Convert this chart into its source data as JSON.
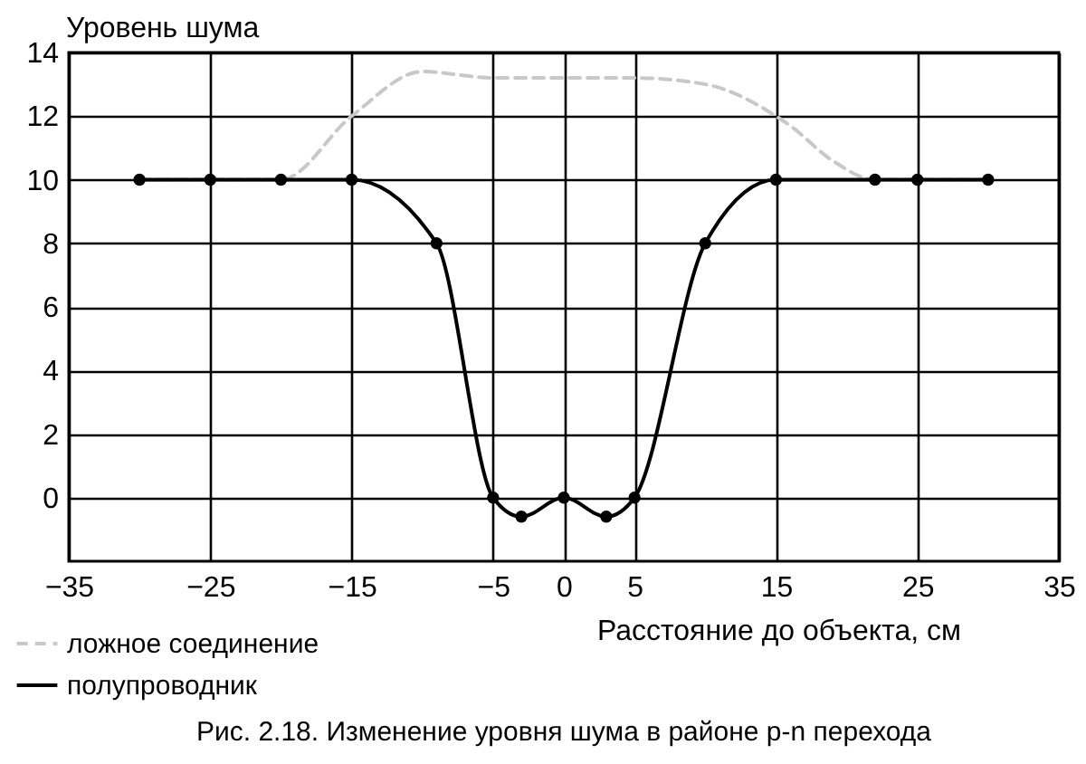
{
  "chart_data": {
    "type": "line",
    "ylabel": "Уровень шума",
    "xlabel": "Расстояние до объекта, см",
    "annotations": [
      "Рис. 2.18. Изменение уровня шума в районе p-n перехода"
    ],
    "xlim": [
      -35,
      35
    ],
    "xticks": [
      -35,
      -25,
      -15,
      -5,
      0,
      5,
      15,
      25,
      35
    ],
    "ylim": [
      -2,
      14
    ],
    "yticks": [
      0,
      2,
      4,
      6,
      8,
      10,
      12,
      14
    ],
    "grid": true,
    "legend": "bottom left",
    "marker": "circle",
    "series": [
      {
        "name": "ложное соединение",
        "color": "#c8c8c8",
        "line_style": "dashed",
        "marker": "none",
        "x": [
          -30,
          -20,
          -15,
          -10,
          -5,
          0,
          5,
          10,
          15,
          16,
          19,
          22,
          30
        ],
        "values": [
          10,
          10,
          12,
          13.4,
          13.2,
          13.2,
          13.2,
          13,
          12,
          11.7,
          10.6,
          10,
          10
        ]
      },
      {
        "name": "полупроводник",
        "color": "#000000",
        "line_style": "solid",
        "marker": "circle",
        "x": [
          -30,
          -25,
          -20,
          -15,
          -9,
          -5,
          -3,
          0,
          3,
          5,
          10,
          15,
          22,
          25,
          30
        ],
        "values": [
          10,
          10,
          10,
          10,
          8,
          0,
          -0.6,
          0,
          -0.6,
          0,
          8,
          10,
          10,
          10,
          10
        ]
      }
    ]
  }
}
